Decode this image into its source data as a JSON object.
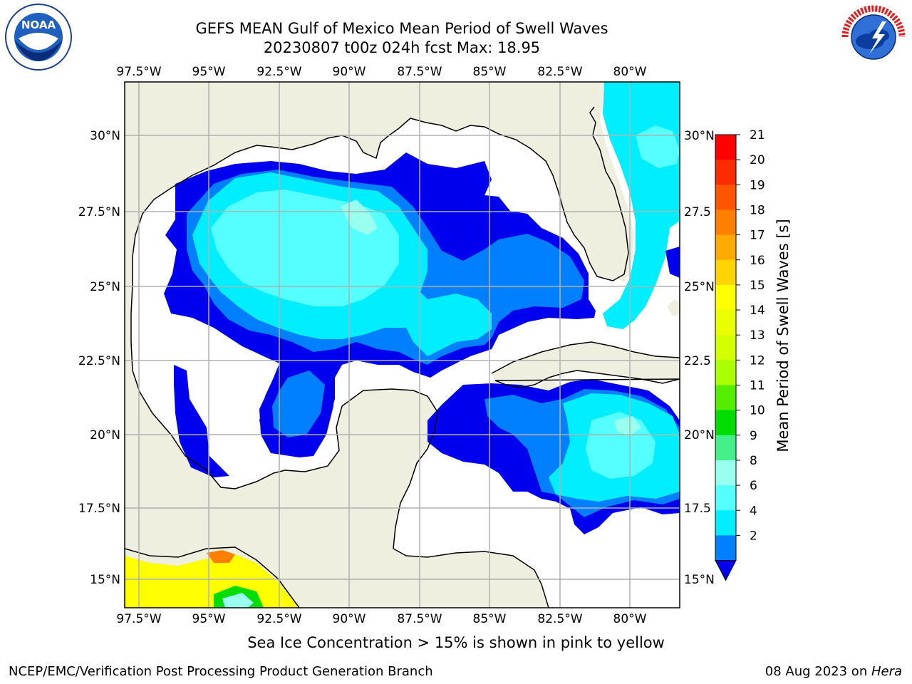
{
  "header": {
    "title_line1": "GEFS MEAN Gulf of Mexico Mean Period of Swell Waves",
    "title_line2": "20230807 t00z 024h fcst   Max: 18.95"
  },
  "logos": {
    "left": "noaa-logo",
    "right": "national-weather-service-logo",
    "noaa_text": "NOAA",
    "nws_text": "NATIONAL WEATHER SERVICE"
  },
  "map": {
    "lon_ticks": [
      "97.5°W",
      "95°W",
      "92.5°W",
      "90°W",
      "87.5°W",
      "85°W",
      "82.5°W",
      "80°W"
    ],
    "lat_ticks_left": [
      "30°N",
      "27.5°N",
      "25°N",
      "22.5°N",
      "20°N",
      "17.5°N",
      "15°N"
    ],
    "lat_ticks_right": [
      "30°N",
      "27.5",
      "25°N",
      "22.5",
      "20°N",
      "17.5",
      "15°N"
    ],
    "land_color": "#efefdf",
    "ocean_color": "#ffffff"
  },
  "colorbar": {
    "label": "Mean Period of Swell Waves [s]",
    "ticks": [
      "21",
      "20",
      "19",
      "18",
      "17",
      "16",
      "15",
      "14",
      "13",
      "12",
      "11",
      "10",
      "9",
      "8",
      "6",
      "4",
      "2"
    ],
    "colors": [
      "#ff0000",
      "#ff2b00",
      "#ff5500",
      "#ff7f00",
      "#ffaa00",
      "#ffd400",
      "#ffff00",
      "#eaff00",
      "#d4ff00",
      "#aaff00",
      "#55ee00",
      "#00dd00",
      "#44f08a",
      "#99ffee",
      "#55ffff",
      "#00eeff",
      "#0080ff",
      "#0000ee"
    ]
  },
  "caption": "Sea Ice Concentration > 15% is shown in pink to yellow",
  "footer": {
    "left": "NCEP/EMC/Verification Post Processing Product Generation Branch",
    "right_prefix": "08 Aug 2023 on ",
    "right_host": "Hera"
  }
}
